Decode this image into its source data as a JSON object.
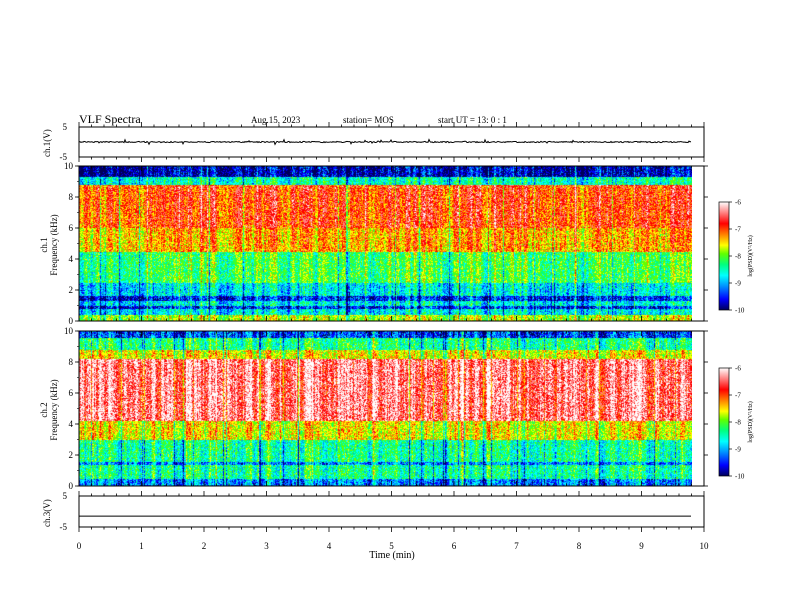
{
  "header": {
    "title": "VLF Spectra",
    "date": "Aug.15, 2023",
    "station": "station= MOS",
    "start": "start  UT =   13: 0  : 1"
  },
  "chart_data": [
    {
      "type": "line",
      "name": "ch1-waveform",
      "ylabel": "ch.1(V)",
      "ylim": [
        -5,
        5
      ],
      "yticks": [
        "5",
        "-5"
      ],
      "xlim": [
        0,
        10
      ],
      "x": [
        0,
        9.8
      ],
      "y": [
        0,
        0
      ]
    },
    {
      "type": "heatmap",
      "name": "ch1-spectrogram",
      "title": "ch.1",
      "ylabel": "Frequency (kHz)",
      "ylim": [
        0,
        10
      ],
      "yticks": [
        "0",
        "2",
        "4",
        "6",
        "8",
        "10"
      ],
      "xlim": [
        0,
        10
      ],
      "x_data_end": 9.8,
      "z_label": "log(PSD)(V²/Hz)",
      "z_range": [
        -10,
        -6
      ],
      "colorbar_ticks": [
        "-6",
        "-7",
        "-8",
        "-9",
        "-10"
      ],
      "colorscale": [
        "#00008b",
        "#0000ff",
        "#00b0ff",
        "#00ffff",
        "#00ff80",
        "#40ff00",
        "#ffff00",
        "#ff8000",
        "#ff0000",
        "#ff9090",
        "#ffffff"
      ]
    },
    {
      "type": "heatmap",
      "name": "ch2-spectrogram",
      "title": "ch.2",
      "ylabel": "Frequency (kHz)",
      "ylim": [
        0,
        10
      ],
      "yticks": [
        "0",
        "2",
        "4",
        "6",
        "8",
        "10"
      ],
      "xlim": [
        0,
        10
      ],
      "x_data_end": 9.8,
      "z_label": "log(PSD)(V²/Hz)",
      "z_range": [
        -10,
        -6
      ],
      "colorbar_ticks": [
        "-6",
        "-7",
        "-8",
        "-9",
        "-10"
      ],
      "colorscale": [
        "#00008b",
        "#0000ff",
        "#00b0ff",
        "#00ffff",
        "#00ff80",
        "#40ff00",
        "#ffff00",
        "#ff8000",
        "#ff0000",
        "#ff9090",
        "#ffffff"
      ]
    },
    {
      "type": "line",
      "name": "ch3-waveform",
      "ylabel": "ch.3(V)",
      "ylim": [
        -5,
        5
      ],
      "yticks": [
        "5",
        "-5"
      ],
      "xlim": [
        0,
        10
      ],
      "x": [
        0,
        9.8
      ],
      "y": [
        -1.5,
        -1.5
      ]
    }
  ],
  "xaxis": {
    "label": "Time  (min)",
    "ticks": [
      "0",
      "1",
      "2",
      "3",
      "4",
      "5",
      "6",
      "7",
      "8",
      "9",
      "10"
    ]
  }
}
